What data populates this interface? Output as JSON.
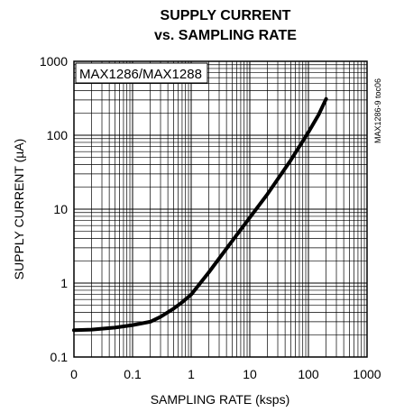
{
  "chart_data": {
    "type": "line",
    "title_line1": "SUPPLY CURRENT",
    "title_line2": "vs. SAMPLING RATE",
    "xlabel": "SAMPLING RATE (ksps)",
    "ylabel": "SUPPLY CURRENT (µA)",
    "x_scale": "log",
    "y_scale": "log",
    "xlim": [
      0.01,
      1000
    ],
    "ylim": [
      0.1,
      1000
    ],
    "x_ticks": [
      "0",
      "0.1",
      "1",
      "10",
      "100",
      "1000"
    ],
    "y_ticks": [
      "0.1",
      "1",
      "10",
      "100",
      "1000"
    ],
    "grid": true,
    "annotation": "MAX1286/MAX1288",
    "side_note": "MAX1286-9 toc06",
    "series": [
      {
        "x": [
          0.01,
          0.02,
          0.05,
          0.1,
          0.2,
          0.3,
          0.5,
          0.7,
          1,
          2,
          5,
          10,
          20,
          50,
          100,
          150,
          200
        ],
        "y": [
          0.23,
          0.235,
          0.25,
          0.27,
          0.3,
          0.35,
          0.45,
          0.55,
          0.7,
          1.4,
          3.7,
          7.7,
          16,
          46,
          110,
          190,
          310
        ]
      }
    ]
  }
}
